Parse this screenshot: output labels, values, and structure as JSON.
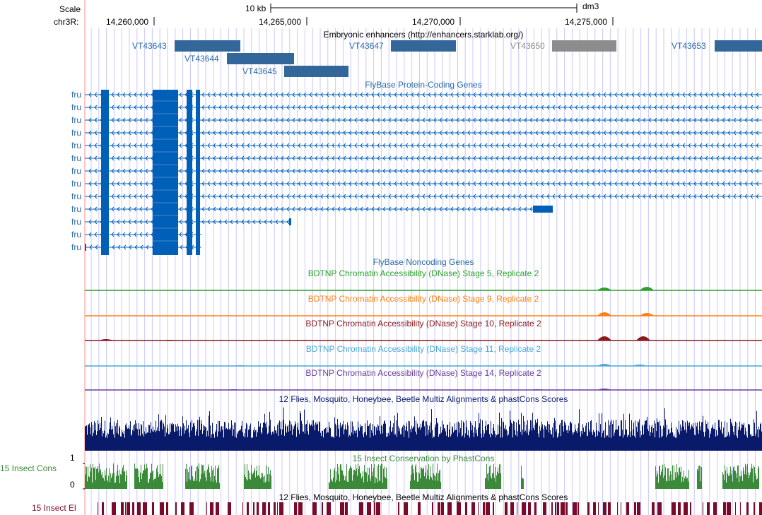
{
  "colors": {
    "grid": "#c8c8ff",
    "margin_line": "#ff8a8a",
    "enhancer": "#336699",
    "enhancer_inactive": "#8c8c8c",
    "gene": "#0060b8",
    "dnase_stage5": "#2ca02c",
    "dnase_stage9": "#ff7f0e",
    "dnase_stage10": "#8b1a1a",
    "dnase_stage11": "#4aa8d8",
    "dnase_stage14": "#6a3d9a",
    "multiz": "#0a1a6a",
    "phastcons": "#3a8a3a",
    "elements": "#7a0a2a"
  },
  "header": {
    "scale_label": "Scale",
    "scale_value": "10 kb",
    "assembly": "dm3",
    "chrom_label": "chr3R:",
    "ticks": [
      "14,260,000",
      "14,265,000",
      "14,270,000",
      "14,275,000"
    ]
  },
  "enhancers": {
    "title": "Embryonic enhancers (http://enhancers.starklab.org/)",
    "items": [
      {
        "name": "VT43643",
        "active": true
      },
      {
        "name": "VT43644",
        "active": true
      },
      {
        "name": "VT43645",
        "active": true
      },
      {
        "name": "VT43647",
        "active": true
      },
      {
        "name": "VT43650",
        "active": false
      },
      {
        "name": "VT43653",
        "active": true
      }
    ]
  },
  "genes": {
    "title": "FlyBase Protein-Coding Genes",
    "gene_name": "fru",
    "rows": 13
  },
  "noncoding": {
    "title": "FlyBase Noncoding Genes"
  },
  "dnase": [
    {
      "title": "BDTNP Chromatin Accessibility (DNase) Stage 5, Replicate 2",
      "color": "#2ca02c"
    },
    {
      "title": "BDTNP Chromatin Accessibility (DNase) Stage 9, Replicate 2",
      "color": "#ff7f0e"
    },
    {
      "title": "BDTNP Chromatin Accessibility (DNase) Stage 10, Replicate 2",
      "color": "#8b1a1a"
    },
    {
      "title": "BDTNP Chromatin Accessibility (DNase) Stage 11, Replicate 2",
      "color": "#4aa8d8"
    },
    {
      "title": "BDTNP Chromatin Accessibility (DNase) Stage 14, Replicate 2",
      "color": "#6a3d9a"
    }
  ],
  "multiz": {
    "title": "12 Flies, Mosquito, Honeybee, Beetle Multiz Alignments & phastCons Scores"
  },
  "cons": {
    "title": "15 Insect Conservation by PhastCons",
    "side_label": "15 Insect Cons",
    "y_max": "1",
    "y_min": "0"
  },
  "elements": {
    "title": "12 Flies, Mosquito, Honeybee, Beetle Multiz Alignments & phastCons Scores",
    "side_label": "15 Insect El"
  }
}
